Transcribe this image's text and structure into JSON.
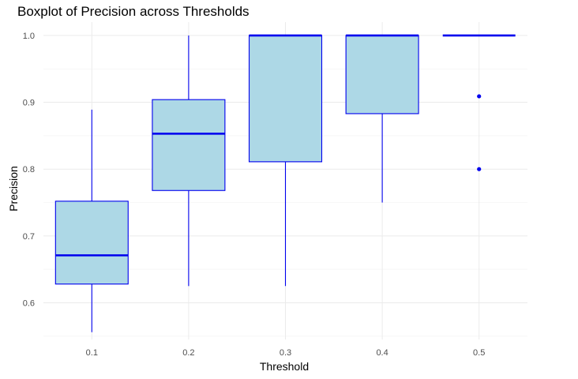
{
  "chart_data": {
    "type": "boxplot",
    "title": "Boxplot of Precision across Thresholds",
    "xlabel": "Threshold",
    "ylabel": "Precision",
    "categories": [
      "0.1",
      "0.2",
      "0.3",
      "0.4",
      "0.5"
    ],
    "ylim": [
      0.545,
      1.02
    ],
    "yticks": [
      0.6,
      0.7,
      0.8,
      0.9,
      1.0
    ],
    "ytick_labels": [
      "0.6",
      "0.7",
      "0.8",
      "0.9",
      "1.0"
    ],
    "grid": true,
    "legend": "none",
    "colors": {
      "fill": "#add8e6",
      "stroke": "#0000ee",
      "grid": "#ebebeb"
    },
    "boxes": [
      {
        "category": "0.1",
        "whisker_low": 0.556,
        "q1": 0.628,
        "median": 0.671,
        "q3": 0.752,
        "whisker_high": 0.889,
        "outliers": []
      },
      {
        "category": "0.2",
        "whisker_low": 0.625,
        "q1": 0.768,
        "median": 0.853,
        "q3": 0.904,
        "whisker_high": 1.0,
        "outliers": []
      },
      {
        "category": "0.3",
        "whisker_low": 0.625,
        "q1": 0.811,
        "median": 1.0,
        "q3": 1.0,
        "whisker_high": 1.0,
        "outliers": []
      },
      {
        "category": "0.4",
        "whisker_low": 0.75,
        "q1": 0.883,
        "median": 1.0,
        "q3": 1.0,
        "whisker_high": 1.0,
        "outliers": []
      },
      {
        "category": "0.5",
        "whisker_low": 1.0,
        "q1": 1.0,
        "median": 1.0,
        "q3": 1.0,
        "whisker_high": 1.0,
        "outliers": [
          0.909,
          0.8
        ]
      }
    ]
  }
}
